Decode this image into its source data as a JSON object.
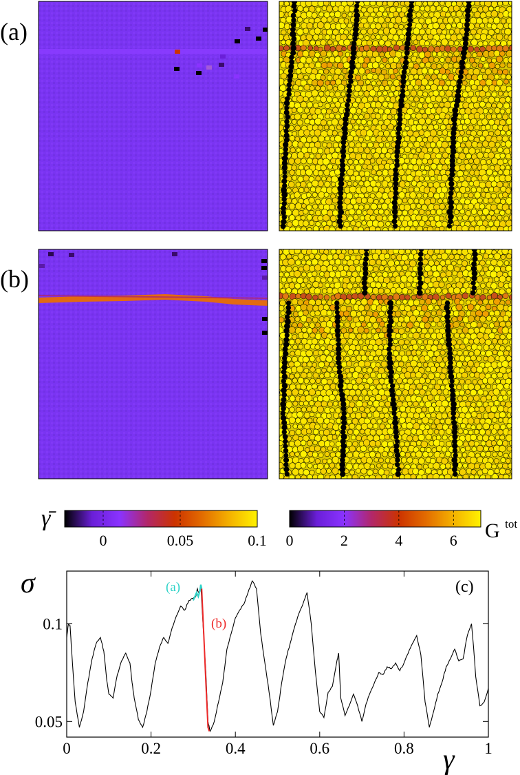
{
  "panels": {
    "a_label": "(a)",
    "b_label": "(b)",
    "c_label": "(c)"
  },
  "colorbar_strain": {
    "symbol": "γ̄",
    "range": [
      -0.025,
      0.1
    ],
    "ticks": [
      "0",
      "0.05",
      "0.1"
    ],
    "tick_values": [
      0,
      0.05,
      0.1
    ]
  },
  "colorbar_force": {
    "symbol": "G",
    "superscript": "tot",
    "range": [
      0,
      7
    ],
    "ticks": [
      "0",
      "2",
      "4",
      "6"
    ],
    "tick_values": [
      0,
      2,
      4,
      6
    ]
  },
  "colors": {
    "colormap": [
      "#000000",
      "#6a1fd8",
      "#8a33ff",
      "#b2276a",
      "#cc3300",
      "#e36c00",
      "#f4b200",
      "#fff200"
    ],
    "strain_background": "#7a34f2",
    "band": "#e26a12",
    "particle": "#f5e200",
    "chain": "#000000",
    "curve": "#000000",
    "segment_a": "#2fd3c8",
    "segment_b": "#ee2a2a"
  },
  "chart_data": {
    "type": "line",
    "title": "",
    "xlabel": "γ",
    "ylabel": "σ",
    "xlim": [
      0,
      1
    ],
    "ylim": [
      0.042,
      0.127
    ],
    "xticks": [
      0,
      0.2,
      0.4,
      0.6,
      0.8,
      1
    ],
    "xtick_labels": [
      "0",
      "0.2",
      "0.4",
      "0.6",
      "0.8",
      "1"
    ],
    "yticks": [
      0.05,
      0.1
    ],
    "ytick_labels": [
      "0.05",
      "0.1"
    ],
    "series": [
      {
        "name": "stress",
        "x": [
          0,
          0.004,
          0.008,
          0.012,
          0.02,
          0.03,
          0.04,
          0.05,
          0.06,
          0.07,
          0.08,
          0.088,
          0.095,
          0.1,
          0.11,
          0.12,
          0.13,
          0.14,
          0.15,
          0.155,
          0.16,
          0.17,
          0.18,
          0.19,
          0.2,
          0.21,
          0.22,
          0.23,
          0.24,
          0.25,
          0.26,
          0.27,
          0.28,
          0.29,
          0.3,
          0.306,
          0.31,
          0.314,
          0.318,
          0.32,
          0.33,
          0.335,
          0.34,
          0.35,
          0.36,
          0.37,
          0.38,
          0.39,
          0.4,
          0.41,
          0.42,
          0.43,
          0.44,
          0.45,
          0.46,
          0.47,
          0.48,
          0.49,
          0.5,
          0.51,
          0.52,
          0.53,
          0.54,
          0.55,
          0.56,
          0.57,
          0.58,
          0.59,
          0.6,
          0.61,
          0.62,
          0.63,
          0.64,
          0.645,
          0.65,
          0.66,
          0.67,
          0.68,
          0.69,
          0.7,
          0.71,
          0.72,
          0.73,
          0.74,
          0.75,
          0.76,
          0.77,
          0.78,
          0.79,
          0.8,
          0.81,
          0.82,
          0.83,
          0.84,
          0.85,
          0.86,
          0.87,
          0.88,
          0.89,
          0.9,
          0.91,
          0.92,
          0.93,
          0.94,
          0.95,
          0.96,
          0.965,
          0.97,
          0.98,
          0.99,
          1.0
        ],
        "y": [
          0.093,
          0.1,
          0.099,
          0.085,
          0.06,
          0.047,
          0.055,
          0.07,
          0.082,
          0.09,
          0.093,
          0.086,
          0.071,
          0.064,
          0.062,
          0.074,
          0.081,
          0.085,
          0.08,
          0.07,
          0.062,
          0.051,
          0.047,
          0.055,
          0.066,
          0.08,
          0.088,
          0.093,
          0.09,
          0.098,
          0.104,
          0.109,
          0.107,
          0.112,
          0.113,
          0.114,
          0.118,
          0.115,
          0.12,
          0.112,
          0.075,
          0.05,
          0.045,
          0.05,
          0.06,
          0.07,
          0.087,
          0.095,
          0.103,
          0.107,
          0.11,
          0.116,
          0.122,
          0.118,
          0.095,
          0.08,
          0.065,
          0.048,
          0.055,
          0.07,
          0.082,
          0.09,
          0.098,
          0.105,
          0.11,
          0.116,
          0.1,
          0.075,
          0.055,
          0.052,
          0.065,
          0.068,
          0.08,
          0.085,
          0.062,
          0.053,
          0.058,
          0.064,
          0.058,
          0.05,
          0.059,
          0.065,
          0.07,
          0.075,
          0.074,
          0.078,
          0.077,
          0.08,
          0.076,
          0.08,
          0.085,
          0.09,
          0.094,
          0.084,
          0.06,
          0.047,
          0.055,
          0.064,
          0.07,
          0.078,
          0.082,
          0.087,
          0.081,
          0.082,
          0.094,
          0.1,
          0.088,
          0.073,
          0.058,
          0.06,
          0.067
        ]
      },
      {
        "name": "segment (a)",
        "label": "(a)",
        "x": [
          0.3,
          0.304,
          0.308,
          0.312,
          0.316,
          0.318,
          0.32
        ],
        "y": [
          0.112,
          0.114,
          0.116,
          0.114,
          0.117,
          0.12,
          0.118
        ]
      },
      {
        "name": "segment (b)",
        "label": "(b)",
        "x": [
          0.32,
          0.325,
          0.33,
          0.335,
          0.338
        ],
        "y": [
          0.118,
          0.095,
          0.07,
          0.047,
          0.045
        ]
      }
    ]
  }
}
